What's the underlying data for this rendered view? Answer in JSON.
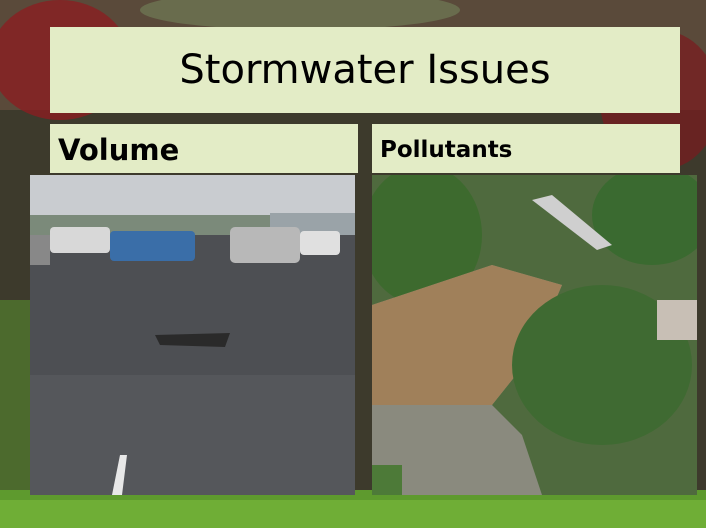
{
  "slide": {
    "title": "Stormwater Issues",
    "panels": [
      {
        "label": "Volume"
      },
      {
        "label": "Pollutants"
      }
    ]
  }
}
